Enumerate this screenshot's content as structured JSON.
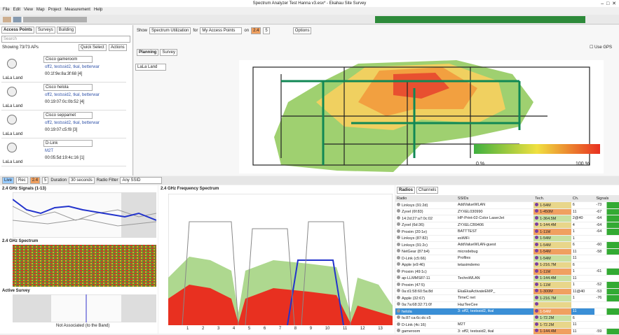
{
  "window": {
    "title": "Spectrum Analyzer Test Hanna v3.esx* - Ekahau Site Survey"
  },
  "menu": [
    "File",
    "Edit",
    "View",
    "Map",
    "Project",
    "Measurement",
    "Help"
  ],
  "left_panel": {
    "tabs": [
      "Access Points",
      "Surveys",
      "Building"
    ],
    "search": "Search",
    "showing": "Showing 73/73 APs",
    "quick_select": "Quick Select",
    "actions": "Actions",
    "items": [
      {
        "name": "Cisco gameroom",
        "detail": "off2, testssid2, tkal, betterwar",
        "mac": "00:1f:9e:8a:3f:68 [4]",
        "floor": "LaLa Land"
      },
      {
        "name": "Cisco helola",
        "detail": "off2, testssid2, tkal, betterwar",
        "mac": "00:19:07:0c:0b:52 [4]",
        "floor": "LaLa Land"
      },
      {
        "name": "Cisco seppamet",
        "detail": "off2, testssid2, tkal, betterwar",
        "mac": "00:19:07:c5:f8 [3]",
        "floor": "LaLa Land"
      },
      {
        "name": "D-Link",
        "detail": "M2T",
        "mac": "00:05:5d:19:4c:16 [1]",
        "floor": "LaLa Land"
      }
    ]
  },
  "map_toolbar": {
    "show": "Show",
    "view": "Spectrum Utilization",
    "for": "for",
    "target": "My Access Points",
    "on": "on",
    "band1": "2.4",
    "band2": "5",
    "options": "Options",
    "tabs": [
      "Planning",
      "Survey"
    ],
    "floor": "LaLa Land",
    "use_gps": "Use GPS",
    "legend_min": "0 %",
    "legend_max": "100 %"
  },
  "bottom_toolbar": {
    "live": "Live",
    "rec": "Rec",
    "band1": "2.4",
    "band2": "5",
    "duration_label": "Duration",
    "duration": "30 seconds",
    "radio_filter_label": "Radio Filter",
    "radio_filter": "Any SSID"
  },
  "panels": {
    "signals": "2.4 GHz Signals (1-13)",
    "spectrum": "2.4 GHz Spectrum",
    "active_survey": "Active Survey",
    "frequency": "2.4 GHz Frequency Spectrum",
    "not_associated": "Not Associated (to the Band)",
    "channels": [
      "1",
      "2",
      "3",
      "4",
      "5",
      "6",
      "7",
      "8",
      "9",
      "10",
      "11",
      "12",
      "13"
    ]
  },
  "table": {
    "tabs": [
      "Radios",
      "Channels"
    ],
    "columns": [
      "Radio",
      "SSIDs",
      "Tech.",
      "Ch.",
      "Signals"
    ],
    "rows": [
      [
        "Linksys (91:2d)",
        "AddValueWLAN",
        "1-54M",
        "6",
        "-73"
      ],
      [
        "Zyxel (6f:83)",
        "ZYXEL030990",
        "1-450M",
        "11",
        "-67"
      ],
      [
        "14:2d:27:a7:0c:02",
        "HP-Print-02-Color LaserJet",
        "1-364.5M",
        "2@40",
        "-64"
      ],
      [
        "Zyxel (6d:36)",
        "ZYXELCB9406",
        "1-144.4M",
        "4",
        "-64"
      ],
      [
        "Proxim (20:1e)",
        "BATTTEST",
        "1-11M",
        "1",
        "-64"
      ],
      [
        "Linksys (87:82)",
        "esWiFi",
        "1-54M",
        "1",
        ""
      ],
      [
        "Linksys (91:2c)",
        "AddValueWLAN-guest",
        "1-54M",
        "6",
        "-60"
      ],
      [
        "NetGear (87:b4)",
        "microdebug",
        "1-54M",
        "11",
        "-58"
      ],
      [
        "D-Link (c5:66)",
        "Profiles",
        "1-54M",
        "11",
        ""
      ],
      [
        "Apple (e9:46)",
        "tetasimdemo",
        "1-216.7M",
        "6",
        ""
      ],
      [
        "Proxim (49:1c)",
        "",
        "1-11M",
        "1",
        "-61"
      ],
      [
        "ap-LLMMS87-11",
        "TechniWLAN",
        "1-144.4M",
        "11",
        ""
      ],
      [
        "Proxim (47:5)",
        "",
        "1-11M",
        "1",
        "-52"
      ],
      [
        "0a:d1:58:60:5a:8d",
        "EkaEkaActivateEMP_",
        "1-300M",
        "11@40",
        "-53"
      ],
      [
        "Apple (32:67)",
        "TimeC net",
        "1-216.7M",
        "1",
        "-76"
      ],
      [
        "0a:7a:68:32:71:0f",
        "HazTeeCee",
        "",
        "",
        ""
      ],
      [
        "helola",
        "3: off2, testssid2, tkal",
        "1-54M",
        "11",
        "-61"
      ],
      [
        "fa:87:ca:6c:dc:c5",
        "",
        "1-72.2M",
        "6",
        ""
      ],
      [
        "D-Link (4c:16)",
        "M2T",
        "1-72.2M",
        "11",
        ""
      ],
      [
        "gameroom",
        "3: off2, testssid2, tkal",
        "1-144.4M",
        "11",
        "-59"
      ]
    ]
  }
}
